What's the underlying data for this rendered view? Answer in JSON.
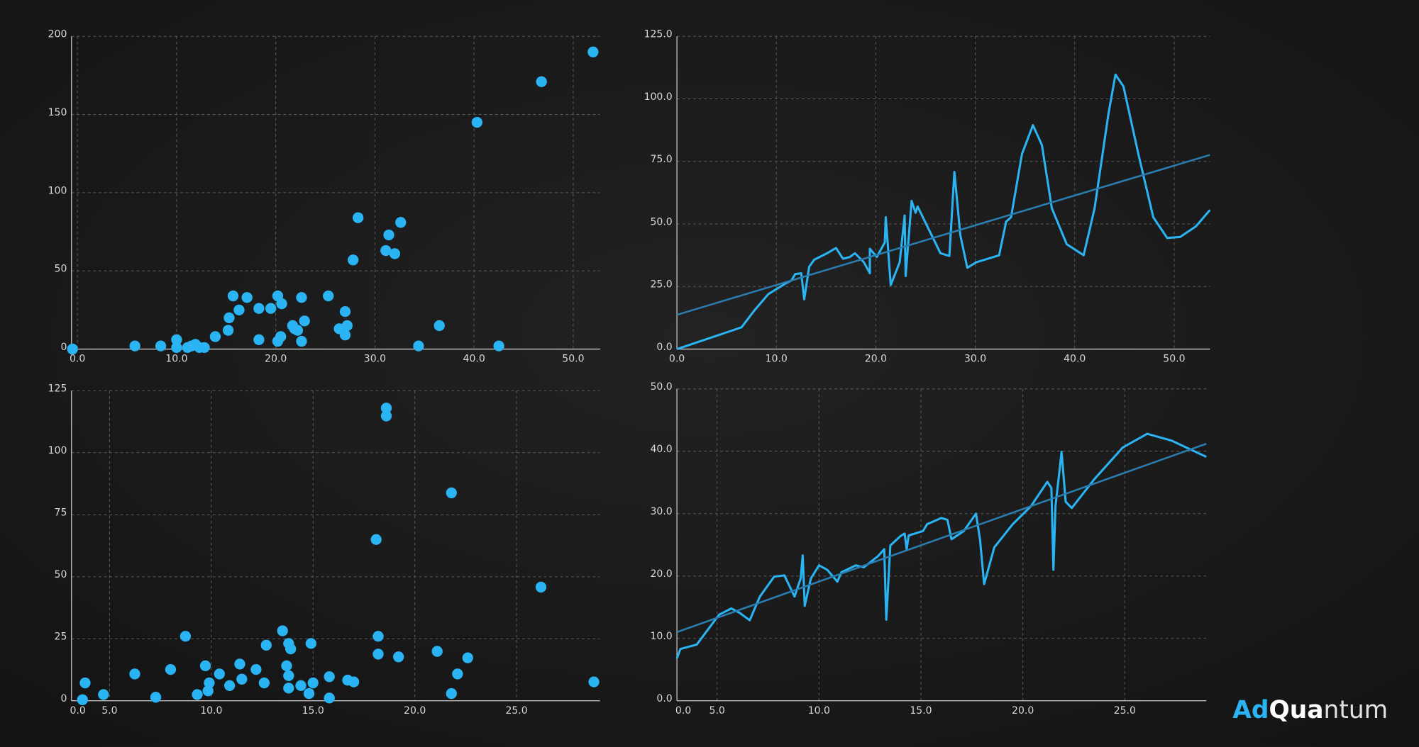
{
  "chart_data": [
    {
      "type": "scatter",
      "color": "#2ab4f4",
      "x": [
        -0.5,
        5.8,
        8.4,
        10.0,
        10.0,
        11.1,
        11.5,
        11.9,
        12.3,
        12.8,
        13.9,
        15.2,
        15.3,
        15.7,
        16.3,
        17.1,
        18.3,
        18.3,
        19.5,
        20.2,
        20.2,
        20.5,
        20.6,
        21.7,
        21.9,
        22.2,
        22.6,
        22.6,
        22.9,
        25.3,
        26.4,
        27.0,
        27.0,
        27.2,
        27.8,
        28.3,
        31.1,
        31.4,
        32.0,
        32.6,
        34.4,
        36.5,
        40.3,
        42.5,
        46.8,
        52.0
      ],
      "values": [
        0,
        2,
        2,
        6,
        1,
        1,
        2,
        3,
        1,
        1,
        8,
        12,
        20,
        34,
        25,
        33,
        26,
        6,
        26,
        34,
        5,
        8,
        29,
        15,
        13,
        12,
        5,
        33,
        18,
        34,
        13,
        24,
        9,
        15,
        57,
        84,
        63,
        73,
        61,
        81,
        2,
        15,
        145,
        2,
        171,
        190
      ],
      "xlim": [
        -0.6,
        52.7
      ],
      "ylim": [
        0,
        200
      ],
      "xticks": [
        {
          "value": 0,
          "label": "0.0"
        },
        {
          "value": 10,
          "label": "10.0"
        },
        {
          "value": 20,
          "label": "20.0"
        },
        {
          "value": 30,
          "label": "30.0"
        },
        {
          "value": 40,
          "label": "40.0"
        },
        {
          "value": 50,
          "label": "50.0"
        }
      ],
      "yticks": [
        0,
        50,
        100,
        150,
        200
      ],
      "grid": true
    },
    {
      "type": "line",
      "series": [
        {
          "color": "#2ab4f4",
          "x": [
            0,
            6.5,
            7.8,
            9.2,
            11,
            11.5,
            11.9,
            12.5,
            12.8,
            13.3,
            13.8,
            15.1,
            16.0,
            16.7,
            17.4,
            17.9,
            18.8,
            19.4,
            19.4,
            20.1,
            20.9,
            21.0,
            21.5,
            22.4,
            22.9,
            23.0,
            23.6,
            24.0,
            24.2,
            26.5,
            27.4,
            27.9,
            28.5,
            29.2,
            30.1,
            32.4,
            33.1,
            33.6,
            34.7,
            35.8,
            36.7,
            37.7,
            39.2,
            40.9,
            42,
            43.4,
            44.1,
            44.9,
            46.4,
            47.9,
            49.3,
            50.6,
            52.2,
            53.6
          ],
          "values": [
            0,
            8.7,
            15.5,
            22,
            26.4,
            27.4,
            30,
            30.3,
            19.9,
            32.9,
            35.7,
            38.3,
            40.4,
            36.1,
            36.8,
            38.3,
            34.7,
            30.3,
            40.1,
            36.8,
            42.6,
            52.7,
            25.6,
            34.7,
            53.4,
            29.2,
            59.2,
            54.5,
            57,
            38.3,
            37.2,
            70.8,
            45.5,
            32.5,
            34.7,
            37.5,
            50.9,
            52.7,
            78,
            89.5,
            81.6,
            56.3,
            41.9,
            37.5,
            56.3,
            94.2,
            109.7,
            105,
            78,
            52.7,
            44.4,
            44.8,
            49.1,
            55.6
          ]
        },
        {
          "color": "#2b7db0",
          "x": [
            0,
            53.6
          ],
          "values": [
            13.7,
            77.6
          ]
        }
      ],
      "xlim": [
        0,
        53.6
      ],
      "ylim": [
        0,
        125
      ],
      "xticks": [
        {
          "value": 0,
          "label": "0.0"
        },
        {
          "value": 10,
          "label": "10.0"
        },
        {
          "value": 20,
          "label": "20.0"
        },
        {
          "value": 30,
          "label": "30.0"
        },
        {
          "value": 40,
          "label": "40.0"
        },
        {
          "value": 50,
          "label": "50.0"
        }
      ],
      "yticks": [
        {
          "value": 0,
          "label": "0.0"
        },
        {
          "value": 25,
          "label": "25.0"
        },
        {
          "value": 50,
          "label": "50.0"
        },
        {
          "value": 75,
          "label": "75.0"
        },
        {
          "value": 100,
          "label": "100.0"
        },
        {
          "value": 125,
          "label": "125.0"
        }
      ],
      "grid": true
    },
    {
      "type": "scatter",
      "color": "#2ab4f4",
      "x": [
        3.67,
        3.8,
        4.7,
        6.24,
        7.27,
        8.0,
        8.73,
        9.31,
        9.71,
        9.84,
        9.9,
        10.4,
        10.9,
        11.4,
        11.5,
        12.2,
        12.6,
        12.7,
        13.5,
        13.7,
        13.8,
        13.8,
        13.9,
        13.8,
        14.4,
        14.9,
        14.8,
        15.0,
        15.8,
        15.8,
        16.7,
        17.0,
        18.1,
        18.2,
        18.2,
        18.6,
        18.6,
        19.2,
        21.1,
        21.8,
        21.8,
        22.1,
        22.6,
        26.2,
        28.8
      ],
      "values": [
        0.4,
        7.2,
        2.5,
        10.8,
        1.4,
        12.6,
        26,
        2.5,
        14.1,
        4,
        7.2,
        10.8,
        6.1,
        14.8,
        8.7,
        12.6,
        7.2,
        22.4,
        28.2,
        14.1,
        23.1,
        10.1,
        20.9,
        5.1,
        6.1,
        23.1,
        2.9,
        7.2,
        9.7,
        1.1,
        8.3,
        7.6,
        65,
        26,
        18.8,
        118,
        114.8,
        17.7,
        19.9,
        83.8,
        2.9,
        10.8,
        17.3,
        45.8,
        7.6
      ],
      "xlim": [
        3.13,
        29.1
      ],
      "ylim": [
        0,
        125
      ],
      "x_origin_label": "0.0",
      "xticks": [
        {
          "value": 5,
          "label": "5.0"
        },
        {
          "value": 10,
          "label": "10.0"
        },
        {
          "value": 15,
          "label": "15.0"
        },
        {
          "value": 20,
          "label": "20.0"
        },
        {
          "value": 25,
          "label": "25.0"
        }
      ],
      "yticks": [
        0,
        25,
        50,
        75,
        100,
        125
      ],
      "grid": true
    },
    {
      "type": "line",
      "series": [
        {
          "color": "#2ab4f4",
          "x": [
            3.03,
            3.2,
            4.0,
            5.1,
            5.7,
            6.1,
            6.6,
            7.1,
            7.8,
            8.3,
            8.8,
            9.1,
            9.2,
            9.3,
            9.6,
            10.0,
            10.4,
            10.9,
            11.1,
            11.8,
            12.2,
            12.9,
            13.2,
            13.3,
            13.5,
            14.0,
            14.2,
            14.3,
            14.4,
            15.1,
            15.3,
            16.0,
            16.3,
            16.5,
            17.1,
            17.7,
            17.9,
            18.1,
            18.6,
            19.5,
            20.4,
            21.2,
            21.4,
            21.5,
            21.6,
            21.9,
            22.1,
            22.4,
            23.5,
            24.9,
            26.1,
            27.3,
            29.0
          ],
          "values": [
            6.8,
            8.3,
            9.0,
            13.8,
            14.8,
            14.1,
            12.9,
            16.7,
            19.9,
            20.1,
            16.7,
            19.6,
            23.3,
            15.2,
            19.6,
            21.7,
            21.0,
            19.1,
            20.6,
            21.7,
            21.4,
            23.2,
            24.3,
            13.0,
            24.9,
            26.4,
            26.8,
            24.3,
            26.5,
            27.2,
            28.3,
            29.3,
            29.0,
            25.9,
            27.2,
            30.0,
            25.8,
            18.7,
            24.6,
            28.3,
            31.2,
            35.1,
            34.1,
            21.0,
            31.2,
            39.9,
            31.9,
            30.9,
            35.5,
            40.6,
            42.8,
            41.7,
            39.1
          ]
        },
        {
          "color": "#2b7db0",
          "x": [
            3.03,
            29.0
          ],
          "values": [
            11.0,
            41.2
          ]
        }
      ],
      "xlim": [
        3.03,
        29.0
      ],
      "ylim": [
        0,
        50
      ],
      "x_origin_label": "0.0",
      "xticks": [
        {
          "value": 5,
          "label": "5.0"
        },
        {
          "value": 10,
          "label": "10.0"
        },
        {
          "value": 15,
          "label": "15.0"
        },
        {
          "value": 20,
          "label": "20.0"
        },
        {
          "value": 25,
          "label": "25.0"
        }
      ],
      "yticks": [
        {
          "value": 0,
          "label": "0.0"
        },
        {
          "value": 10,
          "label": "10.0"
        },
        {
          "value": 20,
          "label": "20.0"
        },
        {
          "value": 30,
          "label": "30.0"
        },
        {
          "value": 40,
          "label": "40.0"
        },
        {
          "value": 50,
          "label": "50.0"
        }
      ],
      "grid": true
    }
  ],
  "logo": {
    "parts": [
      "Ad",
      "Qua",
      "ntum"
    ]
  }
}
